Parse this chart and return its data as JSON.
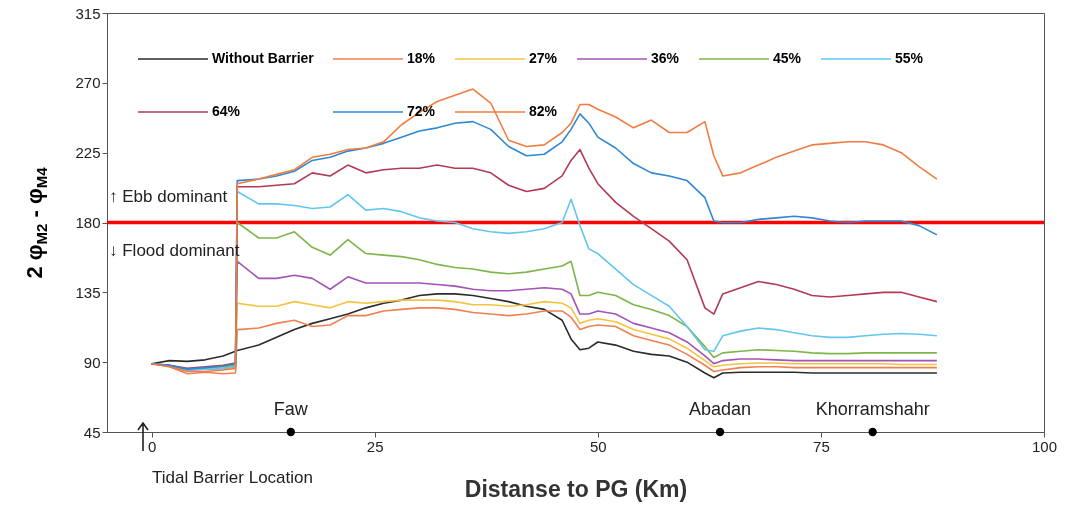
{
  "chart_data": {
    "type": "line",
    "xlabel": "Distanse to PG (Km)",
    "ylabel": "2 φ$_{M2}$ - φ$_{M4}$",
    "x": [
      0,
      2,
      4,
      6,
      8,
      9.4,
      9.6,
      12,
      14,
      16,
      18,
      20,
      22,
      24,
      26,
      28,
      30,
      32,
      34,
      36,
      38,
      40,
      42,
      44,
      46,
      47,
      48,
      49,
      50,
      52,
      54,
      56,
      58,
      60,
      62,
      63,
      64,
      66,
      68,
      70,
      72,
      74,
      76,
      78,
      80,
      82,
      84,
      86,
      88
    ],
    "xlim": [
      -5,
      100
    ],
    "xticks": [
      0,
      25,
      50,
      75,
      100
    ],
    "ylim": [
      45,
      315
    ],
    "yticks": [
      45,
      90,
      135,
      180,
      225,
      270,
      315
    ],
    "grid": false,
    "legend": "top",
    "series": [
      {
        "name": "Without Barrier",
        "color": "#2b2b2b",
        "values": [
          89,
          91,
          90.5,
          91.5,
          94,
          97,
          97.5,
          101,
          106,
          111,
          115,
          118,
          121,
          125,
          128,
          130,
          133,
          134,
          134,
          133,
          131,
          129,
          126,
          124,
          117,
          105,
          98,
          99,
          103,
          101,
          97,
          95,
          94,
          90,
          83,
          80,
          83,
          83.5,
          83.5,
          83.5,
          83.5,
          83,
          83,
          83,
          83,
          83,
          83,
          83,
          83
        ]
      },
      {
        "name": "18%",
        "color": "#f0804f",
        "values": [
          89,
          87,
          82.5,
          83.5,
          82.5,
          83,
          111,
          112,
          115,
          117,
          113,
          114,
          120,
          120,
          123,
          124,
          125,
          125,
          124,
          122,
          121,
          120,
          121,
          123,
          123,
          119,
          111,
          113,
          114,
          113,
          107,
          104,
          101,
          95,
          88,
          84,
          85,
          86.5,
          87,
          87,
          86.5,
          86.5,
          86.5,
          86.5,
          86.5,
          86.5,
          86.5,
          86.5,
          86.5
        ]
      },
      {
        "name": "27%",
        "color": "#f5c342",
        "values": [
          null,
          null,
          null,
          null,
          87,
          88,
          128,
          126,
          126,
          129,
          127,
          125,
          129,
          128,
          129,
          130,
          130,
          130,
          129,
          127,
          127,
          126,
          127,
          129,
          128,
          125,
          115,
          117,
          118,
          116,
          111,
          108,
          105,
          99,
          91,
          87,
          88,
          89,
          89.5,
          89.5,
          89,
          89,
          89,
          89,
          89,
          89,
          88.5,
          88.5,
          88.5
        ]
      },
      {
        "name": "36%",
        "color": "#a552b8",
        "values": [
          89,
          87.5,
          85,
          85.5,
          86,
          87,
          155,
          144,
          144,
          146,
          144,
          137,
          145,
          141,
          141,
          141,
          141,
          140,
          139,
          137,
          136,
          136,
          137,
          138,
          137,
          134,
          121,
          121,
          123,
          121,
          115,
          112,
          109,
          103,
          94,
          89,
          91,
          92,
          92,
          91.5,
          91,
          91,
          91,
          91,
          91,
          91,
          91,
          91,
          91
        ]
      },
      {
        "name": "45%",
        "color": "#7db54a",
        "values": [
          null,
          null,
          null,
          86,
          87,
          88,
          180,
          170,
          170,
          174,
          164,
          159,
          169,
          160,
          159,
          158,
          156,
          153,
          151,
          150,
          148,
          147,
          148,
          150,
          152,
          155,
          133,
          133,
          135,
          133,
          127,
          124,
          120,
          113,
          100,
          93,
          96,
          97,
          98,
          97.5,
          97,
          96,
          95.5,
          95.5,
          96,
          96,
          96,
          96,
          96
        ]
      },
      {
        "name": "55%",
        "color": "#62c6f0",
        "values": [
          89,
          88,
          85,
          85.5,
          86,
          87,
          200,
          192,
          192,
          191,
          189,
          190,
          198,
          188,
          189,
          187,
          183,
          181,
          180,
          176,
          174,
          173,
          174,
          176,
          180,
          195,
          178,
          163,
          160,
          150,
          140,
          133,
          126,
          113,
          98,
          97,
          107,
          110,
          112,
          111,
          109,
          107,
          106,
          106,
          107,
          108,
          108.5,
          108,
          107
        ]
      },
      {
        "name": "64%",
        "color": "#b23a55",
        "values": [
          89,
          88,
          86,
          87,
          88,
          89.5,
          203,
          203,
          204,
          205,
          212,
          210,
          217,
          212,
          214,
          215,
          215,
          217,
          215,
          215,
          212,
          204,
          200,
          202,
          210,
          220,
          227,
          215,
          205,
          193,
          184,
          176,
          168,
          156,
          125,
          121,
          134,
          138,
          142,
          140,
          137,
          133,
          132,
          133,
          134,
          135,
          135,
          132,
          129
        ]
      },
      {
        "name": "72%",
        "color": "#2e88d4",
        "values": [
          89,
          88,
          85.5,
          86.5,
          87.5,
          89,
          207,
          208,
          210,
          213,
          220,
          222,
          226,
          228,
          231,
          235,
          239,
          241,
          244,
          245,
          240,
          229,
          223,
          224,
          232,
          240,
          250,
          244,
          235,
          228,
          218,
          212,
          210,
          207,
          196,
          181,
          180,
          180,
          182,
          183,
          184,
          183,
          181,
          180,
          181,
          181,
          181,
          178,
          172
        ]
      },
      {
        "name": "82%",
        "color": "#ef7d42",
        "values": [
          89,
          87,
          84,
          84,
          85,
          86,
          205,
          208,
          211,
          214,
          222,
          224,
          227,
          228,
          232,
          243,
          251,
          258,
          262,
          266,
          257,
          233,
          229,
          230,
          238,
          244,
          256,
          256,
          253,
          248,
          241,
          246,
          238,
          238,
          245,
          223,
          210,
          212,
          217,
          222,
          226,
          230,
          231,
          232,
          232,
          230,
          225,
          216,
          208
        ]
      }
    ],
    "ref_lines": [
      {
        "axis": "y",
        "value": 180,
        "color": "#ff0000"
      }
    ],
    "annotations": [
      "↑ Ebb dominant",
      "↓ Flood dominant",
      {
        "text": "Faw",
        "x": 15.6,
        "y": 45
      },
      {
        "text": "Abadan",
        "x": 63.7,
        "y": 45
      },
      {
        "text": "Khorramshahr",
        "x": 80.8,
        "y": 45
      },
      "Tidal Barrier Location"
    ]
  }
}
